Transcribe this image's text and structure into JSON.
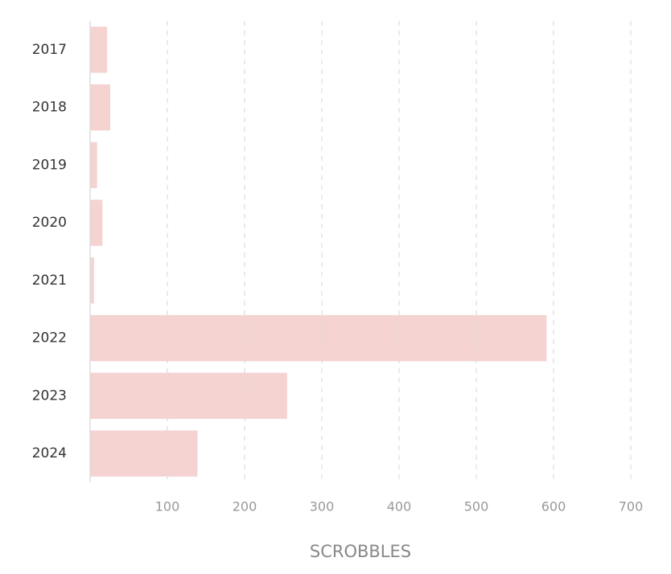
{
  "chart_data": {
    "type": "bar",
    "orientation": "horizontal",
    "categories": [
      "2017",
      "2018",
      "2019",
      "2020",
      "2021",
      "2022",
      "2023",
      "2024"
    ],
    "values": [
      22,
      26,
      9,
      16,
      5,
      591,
      255,
      139
    ],
    "color": "#f4d3d1",
    "xlabel": "SCROBBLES",
    "xlim": [
      0,
      700
    ],
    "xticks": [
      100,
      200,
      300,
      400,
      500,
      600,
      700
    ],
    "grid": true
  }
}
